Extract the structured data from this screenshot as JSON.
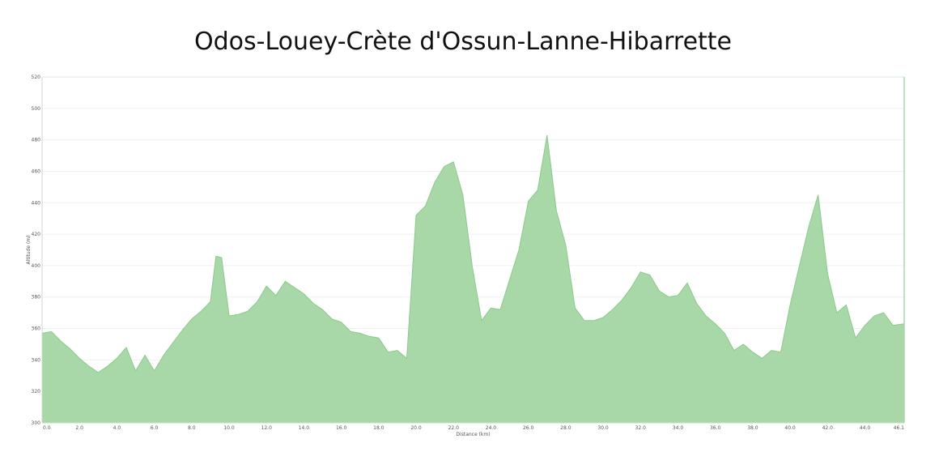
{
  "chart_data": {
    "type": "area",
    "title": "Odos-Louey-Crète d'Ossun-Lanne-Hibarrette",
    "xlabel": "Distance   (km)",
    "ylabel": "Altitude (m)",
    "xlim": [
      0,
      46.1
    ],
    "ylim": [
      300,
      520
    ],
    "xticks": [
      0,
      2,
      4,
      6,
      8,
      10,
      12,
      14,
      16,
      18,
      20,
      22,
      24,
      26,
      28,
      30,
      32,
      34,
      36,
      38,
      40,
      42,
      44,
      46.1
    ],
    "xtick_labels": [
      "0.0",
      "2.0",
      "4.0",
      "6.0",
      "8.0",
      "10.0",
      "12.0",
      "14.0",
      "16.0",
      "18.0",
      "20.0",
      "22.0",
      "24.0",
      "26.0",
      "28.0",
      "30.0",
      "32.0",
      "34.0",
      "36.0",
      "38.0",
      "40.0",
      "42.0",
      "44.0",
      "46.1"
    ],
    "yticks": [
      300,
      320,
      340,
      360,
      380,
      400,
      420,
      440,
      460,
      480,
      500,
      520
    ],
    "ytick_labels": [
      "300",
      "320",
      "340",
      "360",
      "380",
      "400",
      "420",
      "440",
      "460",
      "480",
      "500",
      "520"
    ],
    "grid": true,
    "fill_color": "#a8d8a8",
    "line_color": "#8cc98c",
    "series": [
      {
        "x": [
          0,
          0.5,
          1,
          1.5,
          2,
          2.5,
          3,
          3.5,
          4,
          4.5,
          5,
          5.5,
          6,
          6.5,
          7,
          7.5,
          8,
          8.5,
          9,
          9.3,
          9.6,
          10,
          10.5,
          11,
          11.5,
          12,
          12.5,
          13,
          13.5,
          14,
          14.5,
          15,
          15.5,
          16,
          16.5,
          17,
          17.5,
          18,
          18.5,
          19,
          19.5,
          20,
          20.5,
          21,
          21.5,
          22,
          22.5,
          23,
          23.5,
          24,
          24.5,
          25,
          25.5,
          26,
          26.5,
          27,
          27.5,
          28,
          28.5,
          29,
          29.5,
          30,
          30.5,
          31,
          31.5,
          32,
          32.5,
          33,
          33.5,
          34,
          34.5,
          35,
          35.5,
          36,
          36.5,
          37,
          37.5,
          38,
          38.5,
          39,
          39.5,
          40,
          40.5,
          41,
          41.5,
          42,
          42.5,
          43,
          43.5,
          44,
          44.5,
          45,
          45.5,
          46.1
        ],
        "y": [
          357,
          358,
          352,
          347,
          341,
          336,
          332,
          336,
          341,
          348,
          333,
          343,
          333,
          343,
          351,
          359,
          366,
          371,
          377,
          406,
          405,
          368,
          369,
          371,
          377,
          387,
          381,
          390,
          386,
          382,
          376,
          372,
          366,
          364,
          358,
          357,
          355,
          354,
          345,
          346,
          341,
          432,
          438,
          453,
          463,
          466,
          445,
          400,
          365,
          373,
          372,
          391,
          410,
          441,
          448,
          483,
          435,
          413,
          373,
          365,
          365,
          367,
          372,
          378,
          386,
          396,
          394,
          384,
          380,
          381,
          389,
          376,
          368,
          363,
          357,
          346,
          350,
          345,
          341,
          346,
          345,
          375,
          400,
          425,
          445,
          395,
          370,
          375,
          354,
          362,
          368,
          370,
          362,
          363
        ]
      }
    ]
  }
}
